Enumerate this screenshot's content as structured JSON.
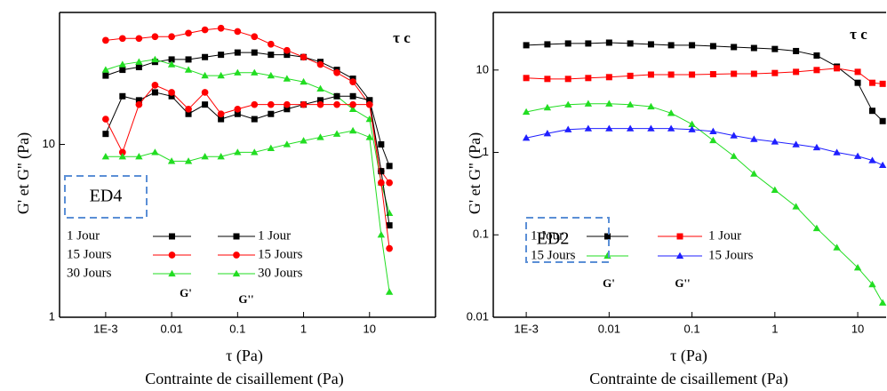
{
  "chart_data": [
    {
      "type": "line",
      "xlog": true,
      "ylog": true,
      "ylabel": "G' et G'' (Pa)",
      "xlabel": "τ (Pa)",
      "xlabel2": "Contrainte de cisaillement (Pa)",
      "annotations": [
        "τ c",
        "ED4",
        "G'",
        "G''"
      ],
      "xlim": [
        0.0002,
        100
      ],
      "ylim": [
        1,
        58
      ],
      "xticks": [
        {
          "value": 0.001,
          "label": "1E-3"
        },
        0.01,
        0.1,
        1,
        10
      ],
      "yticks": [
        1,
        10
      ],
      "x": [
        0.001,
        0.0018,
        0.0032,
        0.0056,
        0.01,
        0.018,
        0.032,
        0.056,
        0.1,
        0.18,
        0.32,
        0.56,
        1,
        1.8,
        3.2,
        5.6,
        10,
        15,
        20
      ],
      "series": [
        {
          "name": "1 Jour",
          "color": "#000000",
          "marker": "square",
          "values": [
            25,
            27,
            28,
            30,
            31,
            31,
            32,
            33,
            34,
            34,
            33,
            33,
            32,
            30,
            27,
            24,
            18,
            10,
            7.5
          ]
        },
        {
          "name": "15 Jours",
          "color": "#ff0000",
          "marker": "circle",
          "values": [
            40,
            41,
            41,
            42,
            42,
            44,
            46,
            47,
            45,
            42,
            38,
            35,
            32,
            29,
            26,
            23,
            17,
            7,
            6
          ]
        },
        {
          "name": "30 Jours",
          "color": "#22dd22",
          "marker": "triangle",
          "values": [
            27,
            29,
            30,
            31,
            29,
            27,
            25,
            25,
            26,
            26,
            25,
            24,
            23,
            21,
            19,
            16,
            14,
            6,
            4
          ]
        },
        {
          "name": "1 Jour",
          "color": "#000000",
          "marker": "square",
          "values": [
            11.5,
            19,
            18,
            20,
            19,
            15,
            17,
            14,
            15,
            14,
            15,
            16,
            17,
            18,
            19,
            19,
            18,
            7,
            3.4
          ]
        },
        {
          "name": "15 Jours",
          "color": "#ff0000",
          "marker": "circle",
          "values": [
            14,
            9,
            17,
            22,
            20,
            16,
            20,
            15,
            16,
            17,
            17,
            17,
            17,
            17,
            17,
            17,
            17,
            6,
            2.5
          ]
        },
        {
          "name": "30 Jours",
          "color": "#22dd22",
          "marker": "triangle",
          "values": [
            8.5,
            8.5,
            8.5,
            9,
            8,
            8,
            8.5,
            8.5,
            9,
            9,
            9.5,
            10,
            10.5,
            11,
            11.5,
            12,
            11,
            3,
            1.4
          ]
        }
      ]
    },
    {
      "type": "line",
      "xlog": true,
      "ylog": true,
      "ylabel": "G' et G'' (Pa)",
      "xlabel": "τ (Pa)",
      "xlabel2": "Contrainte de cisaillement (Pa)",
      "annotations": [
        "τ c",
        "ED2",
        "G'",
        "G''"
      ],
      "xlim": [
        0.0004,
        22
      ],
      "ylim": [
        0.01,
        50
      ],
      "xticks": [
        {
          "value": 0.001,
          "label": "1E-3"
        },
        0.01,
        0.1,
        1,
        10
      ],
      "yticks": [
        0.01,
        0.1,
        1,
        10
      ],
      "x": [
        0.001,
        0.0018,
        0.0032,
        0.0056,
        0.01,
        0.018,
        0.032,
        0.056,
        0.1,
        0.18,
        0.32,
        0.56,
        1,
        1.8,
        3.2,
        5.6,
        10,
        15,
        20
      ],
      "series": [
        {
          "name": "1 Jour",
          "color": "#000000",
          "marker": "square",
          "values": [
            20,
            20.5,
            21,
            21,
            21.5,
            21,
            20.5,
            20,
            20,
            19.5,
            19,
            18.5,
            18,
            17,
            15,
            11,
            7,
            3.2,
            2.4
          ]
        },
        {
          "name": "15 Jours",
          "color": "#22dd22",
          "marker": "triangle",
          "values": [
            3.1,
            3.5,
            3.8,
            3.9,
            3.9,
            3.8,
            3.6,
            3,
            2.2,
            1.4,
            0.9,
            0.55,
            0.35,
            0.22,
            0.12,
            0.07,
            0.04,
            0.025,
            0.015
          ]
        },
        {
          "name": "1 Jour",
          "color": "#ff0000",
          "marker": "square",
          "values": [
            8,
            7.8,
            7.8,
            8,
            8.2,
            8.5,
            8.8,
            8.8,
            8.8,
            8.9,
            9,
            9,
            9.2,
            9.5,
            10,
            10.5,
            9.5,
            7,
            6.8
          ]
        },
        {
          "name": "15 Jours",
          "color": "#1f1fff",
          "marker": "triangle",
          "values": [
            1.5,
            1.7,
            1.9,
            1.95,
            1.95,
            1.95,
            1.95,
            1.95,
            1.9,
            1.8,
            1.6,
            1.45,
            1.35,
            1.25,
            1.15,
            1.0,
            0.9,
            0.8,
            0.7
          ]
        }
      ]
    }
  ]
}
